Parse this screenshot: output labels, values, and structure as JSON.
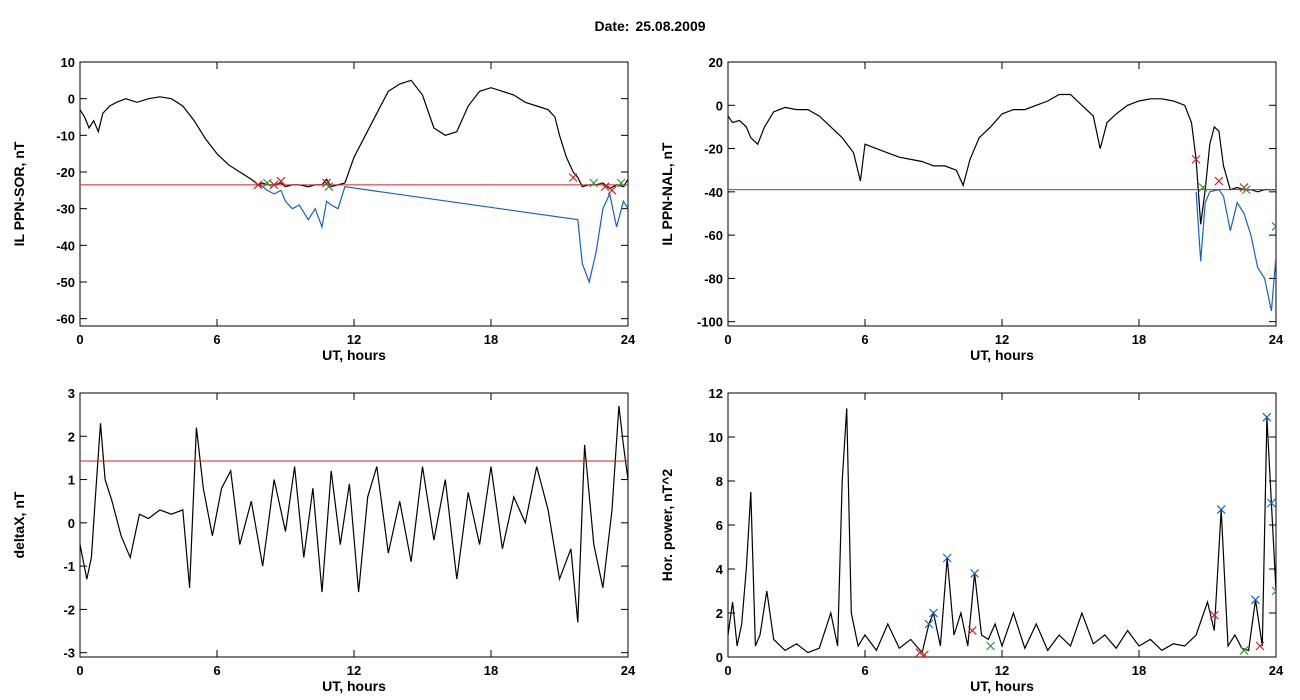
{
  "title": {
    "label": "Date:",
    "value": "25.08.2009"
  },
  "colors": {
    "trace": "#000000",
    "blue": "#1560d0",
    "red": "#d42020",
    "green": "#2a9a2a"
  },
  "chart_data": [
    {
      "type": "line",
      "xlabel": "UT, hours",
      "ylabel": "IL PPN-SOR, nT",
      "xlim": [
        0,
        24
      ],
      "ylim": [
        -62,
        10
      ],
      "xticks": [
        0,
        6,
        12,
        18,
        24
      ],
      "yticks": [
        -60,
        -50,
        -40,
        -30,
        -20,
        -10,
        0,
        10
      ],
      "threshold": -23.5,
      "series": [
        {
          "x": [
            0,
            0.2,
            0.4,
            0.6,
            0.8,
            1.0,
            1.3,
            1.6,
            2.0,
            2.5,
            3.0,
            3.5,
            4.0,
            4.5,
            5.0,
            5.5,
            6.0,
            6.5,
            7.0,
            7.5,
            7.8,
            8.0,
            8.2,
            8.5,
            8.8,
            9.0,
            9.3,
            9.6,
            10.0,
            10.3,
            10.6,
            10.8,
            11.0,
            11.3,
            11.6,
            12.0,
            12.5,
            13.0,
            13.5,
            14.0,
            14.5,
            15.0,
            15.5,
            16.0,
            16.5,
            17.0,
            17.5,
            18.0,
            18.5,
            19.0,
            19.5,
            20.0,
            20.5,
            20.8,
            21.0,
            21.3,
            21.6,
            21.8,
            22.0,
            22.3,
            22.6,
            22.9,
            23.2,
            23.5,
            23.8,
            24.0
          ],
          "y": [
            -3,
            -5,
            -8,
            -6,
            -9,
            -4,
            -2,
            -1,
            0,
            -1,
            0,
            0.5,
            0,
            -2,
            -6,
            -11,
            -15,
            -18,
            -20,
            -22,
            -23.5,
            -23,
            -23.5,
            -23.5,
            -23,
            -24,
            -23.5,
            -23.5,
            -24,
            -23.5,
            -23.5,
            -22,
            -24,
            -23.5,
            -23,
            -16,
            -10,
            -4,
            2,
            4,
            5,
            1,
            -8,
            -10,
            -9,
            -2,
            2,
            3,
            2,
            1,
            -1,
            -2,
            -3,
            -5,
            -10,
            -16,
            -20,
            -21.5,
            -24,
            -23.5,
            -23.5,
            -23,
            -24.5,
            -23.5,
            -24,
            -22
          ]
        },
        {
          "x": [
            7.8,
            8.0,
            8.2,
            8.5,
            8.8,
            9.0,
            9.3,
            9.6,
            10.0,
            10.3,
            10.6,
            10.8,
            11.0,
            11.3,
            11.6,
            21.8,
            22.0,
            22.3,
            22.6,
            22.9,
            23.2,
            23.5,
            23.8,
            24.0
          ],
          "y": [
            -23.5,
            -24,
            -25,
            -26,
            -25,
            -28,
            -30,
            -29,
            -33,
            -30,
            -35,
            -28,
            -29,
            -30,
            -24,
            -33,
            -45,
            -50,
            -42,
            -30,
            -26,
            -35,
            -28,
            -30
          ],
          "color": "blue"
        }
      ],
      "markers": [
        {
          "x": 7.8,
          "y": -23.5,
          "color": "red"
        },
        {
          "x": 8.2,
          "y": -23,
          "color": "green"
        },
        {
          "x": 8.5,
          "y": -23.5,
          "color": "red"
        },
        {
          "x": 8.8,
          "y": -22.5,
          "color": "red"
        },
        {
          "x": 10.8,
          "y": -23,
          "color": "red"
        },
        {
          "x": 10.9,
          "y": -24,
          "color": "green"
        },
        {
          "x": 21.6,
          "y": -21.5,
          "color": "red"
        },
        {
          "x": 22.5,
          "y": -23,
          "color": "green"
        },
        {
          "x": 23.0,
          "y": -24,
          "color": "red"
        },
        {
          "x": 23.3,
          "y": -25,
          "color": "red"
        },
        {
          "x": 23.7,
          "y": -23,
          "color": "green"
        }
      ]
    },
    {
      "type": "line",
      "xlabel": "UT, hours",
      "ylabel": "IL PPN-NAL, nT",
      "xlim": [
        0,
        24
      ],
      "ylim": [
        -102,
        20
      ],
      "xticks": [
        0,
        6,
        12,
        18,
        24
      ],
      "yticks": [
        -100,
        -80,
        -60,
        -40,
        -20,
        0,
        20
      ],
      "threshold": -39,
      "series": [
        {
          "x": [
            0,
            0.2,
            0.5,
            0.8,
            1.0,
            1.3,
            1.6,
            2.0,
            2.5,
            3.0,
            3.5,
            4.0,
            4.5,
            5.0,
            5.5,
            5.8,
            6.0,
            6.5,
            7.0,
            7.5,
            8.0,
            8.5,
            9.0,
            9.5,
            10.0,
            10.3,
            10.6,
            11.0,
            11.5,
            12.0,
            12.5,
            13.0,
            13.5,
            14.0,
            14.5,
            15.0,
            15.5,
            16.0,
            16.3,
            16.6,
            17.0,
            17.5,
            18.0,
            18.5,
            19.0,
            19.5,
            20.0,
            20.3,
            20.5,
            20.7,
            20.9,
            21.1,
            21.3,
            21.5,
            21.7,
            22.0,
            22.3,
            22.6,
            22.9,
            23.2,
            23.5,
            23.8,
            24.0
          ],
          "y": [
            -5,
            -8,
            -7,
            -10,
            -15,
            -18,
            -10,
            -3,
            -1,
            -2,
            -2,
            -5,
            -10,
            -15,
            -22,
            -35,
            -18,
            -20,
            -22,
            -24,
            -25,
            -26,
            -28,
            -28,
            -30,
            -37,
            -25,
            -15,
            -10,
            -4,
            -2,
            -2,
            0,
            2,
            5,
            5,
            0,
            -5,
            -20,
            -8,
            -4,
            0,
            2,
            3,
            3,
            2,
            0,
            -8,
            -25,
            -55,
            -39,
            -18,
            -10,
            -12,
            -28,
            -39,
            -38,
            -39,
            -39,
            -40,
            -39,
            -39,
            -39
          ]
        },
        {
          "x": [
            20.5,
            20.7,
            20.9,
            21.1,
            21.5,
            21.7,
            22.0,
            22.3,
            22.6,
            22.9,
            23.2,
            23.5,
            23.8,
            24.0
          ],
          "y": [
            -40,
            -72,
            -45,
            -40,
            -39,
            -42,
            -58,
            -45,
            -50,
            -60,
            -75,
            -80,
            -95,
            -70
          ],
          "color": "blue"
        }
      ],
      "markers": [
        {
          "x": 20.5,
          "y": -25,
          "color": "red"
        },
        {
          "x": 20.8,
          "y": -38,
          "color": "green"
        },
        {
          "x": 21.5,
          "y": -35,
          "color": "red"
        },
        {
          "x": 22.6,
          "y": -38,
          "color": "red"
        },
        {
          "x": 22.7,
          "y": -39,
          "color": "green"
        },
        {
          "x": 24.0,
          "y": -56,
          "color": "green"
        }
      ]
    },
    {
      "type": "line",
      "xlabel": "UT, hours",
      "ylabel": "deltaX, nT",
      "xlim": [
        0,
        24
      ],
      "ylim": [
        -3.1,
        3
      ],
      "xticks": [
        0,
        6,
        12,
        18,
        24
      ],
      "yticks": [
        -3,
        -2,
        -1,
        0,
        1,
        2,
        3
      ],
      "threshold": 1.43,
      "series": [
        {
          "x": [
            0,
            0.3,
            0.5,
            0.7,
            0.9,
            1.1,
            1.4,
            1.8,
            2.2,
            2.6,
            3.0,
            3.5,
            4.0,
            4.5,
            4.8,
            5.1,
            5.4,
            5.8,
            6.2,
            6.6,
            7.0,
            7.5,
            8.0,
            8.5,
            9.0,
            9.4,
            9.8,
            10.2,
            10.6,
            11.0,
            11.4,
            11.8,
            12.2,
            12.6,
            13.0,
            13.5,
            14.0,
            14.5,
            15.0,
            15.5,
            16.0,
            16.5,
            17.0,
            17.5,
            18.0,
            18.5,
            19.0,
            19.5,
            20.0,
            20.5,
            21.0,
            21.5,
            21.8,
            22.1,
            22.5,
            22.9,
            23.3,
            23.6,
            23.8,
            24.0
          ],
          "y": [
            -0.5,
            -1.3,
            -0.8,
            0.8,
            2.3,
            1.0,
            0.5,
            -0.3,
            -0.8,
            0.2,
            0.1,
            0.3,
            0.2,
            0.3,
            -1.5,
            2.2,
            0.8,
            -0.3,
            0.8,
            1.2,
            -0.5,
            0.5,
            -1.0,
            1.0,
            -0.2,
            1.3,
            -0.8,
            0.8,
            -1.6,
            1.2,
            -0.5,
            0.9,
            -1.6,
            0.6,
            1.3,
            -0.7,
            0.5,
            -0.9,
            1.3,
            -0.4,
            1.0,
            -1.3,
            0.7,
            -0.5,
            1.3,
            -0.6,
            0.6,
            0.0,
            1.3,
            0.3,
            -1.3,
            -0.6,
            -2.3,
            1.8,
            -0.5,
            -1.5,
            0.3,
            2.7,
            1.8,
            1.0
          ]
        }
      ],
      "markers": []
    },
    {
      "type": "line",
      "xlabel": "UT, hours",
      "ylabel": "Hor. power, nT^2",
      "xlim": [
        0,
        24
      ],
      "ylim": [
        0,
        12
      ],
      "xticks": [
        0,
        6,
        12,
        18,
        24
      ],
      "yticks": [
        0,
        2,
        4,
        6,
        8,
        10,
        12
      ],
      "series": [
        {
          "x": [
            0,
            0.2,
            0.4,
            0.6,
            0.8,
            1.0,
            1.2,
            1.4,
            1.7,
            2.0,
            2.5,
            3.0,
            3.5,
            4.0,
            4.5,
            4.8,
            5.0,
            5.2,
            5.4,
            5.7,
            6.0,
            6.5,
            7.0,
            7.5,
            8.0,
            8.5,
            8.8,
            9.0,
            9.3,
            9.6,
            9.9,
            10.2,
            10.5,
            10.8,
            11.1,
            11.4,
            11.7,
            12.0,
            12.5,
            13.0,
            13.5,
            14.0,
            14.5,
            15.0,
            15.5,
            16.0,
            16.5,
            17.0,
            17.5,
            18.0,
            18.5,
            19.0,
            19.5,
            20.0,
            20.5,
            21.0,
            21.3,
            21.6,
            21.9,
            22.2,
            22.5,
            22.8,
            23.1,
            23.4,
            23.6,
            23.8,
            24.0
          ],
          "y": [
            1.0,
            2.5,
            0.5,
            1.5,
            4.0,
            7.5,
            0.5,
            1.0,
            3.0,
            0.8,
            0.3,
            0.6,
            0.2,
            0.4,
            2.0,
            0.5,
            8.0,
            11.3,
            2.0,
            0.5,
            1.0,
            0.3,
            1.5,
            0.4,
            0.8,
            0.2,
            1.5,
            2.0,
            0.5,
            4.5,
            1.0,
            2.0,
            0.5,
            3.8,
            1.0,
            0.8,
            1.5,
            0.5,
            2.0,
            0.4,
            1.5,
            0.3,
            1.0,
            0.5,
            2.0,
            0.6,
            1.0,
            0.4,
            1.2,
            0.5,
            0.8,
            0.3,
            0.6,
            0.5,
            1.0,
            2.5,
            1.2,
            6.7,
            0.5,
            1.0,
            0.4,
            0.3,
            2.6,
            0.5,
            10.9,
            7.0,
            3.0
          ]
        }
      ],
      "markers": [
        {
          "x": 8.4,
          "y": 0.2,
          "color": "red"
        },
        {
          "x": 8.6,
          "y": 0.1,
          "color": "red"
        },
        {
          "x": 8.8,
          "y": 1.5,
          "color": "blue"
        },
        {
          "x": 9.0,
          "y": 2.0,
          "color": "blue"
        },
        {
          "x": 9.6,
          "y": 4.5,
          "color": "blue"
        },
        {
          "x": 10.8,
          "y": 3.8,
          "color": "blue"
        },
        {
          "x": 10.7,
          "y": 1.2,
          "color": "red"
        },
        {
          "x": 11.5,
          "y": 0.5,
          "color": "green"
        },
        {
          "x": 21.3,
          "y": 1.9,
          "color": "red"
        },
        {
          "x": 21.6,
          "y": 6.7,
          "color": "blue"
        },
        {
          "x": 22.6,
          "y": 0.3,
          "color": "green"
        },
        {
          "x": 23.1,
          "y": 2.6,
          "color": "blue"
        },
        {
          "x": 23.3,
          "y": 0.5,
          "color": "red"
        },
        {
          "x": 23.6,
          "y": 10.9,
          "color": "blue"
        },
        {
          "x": 23.8,
          "y": 7.0,
          "color": "blue"
        },
        {
          "x": 24.0,
          "y": 3.0,
          "color": "green"
        }
      ]
    }
  ]
}
